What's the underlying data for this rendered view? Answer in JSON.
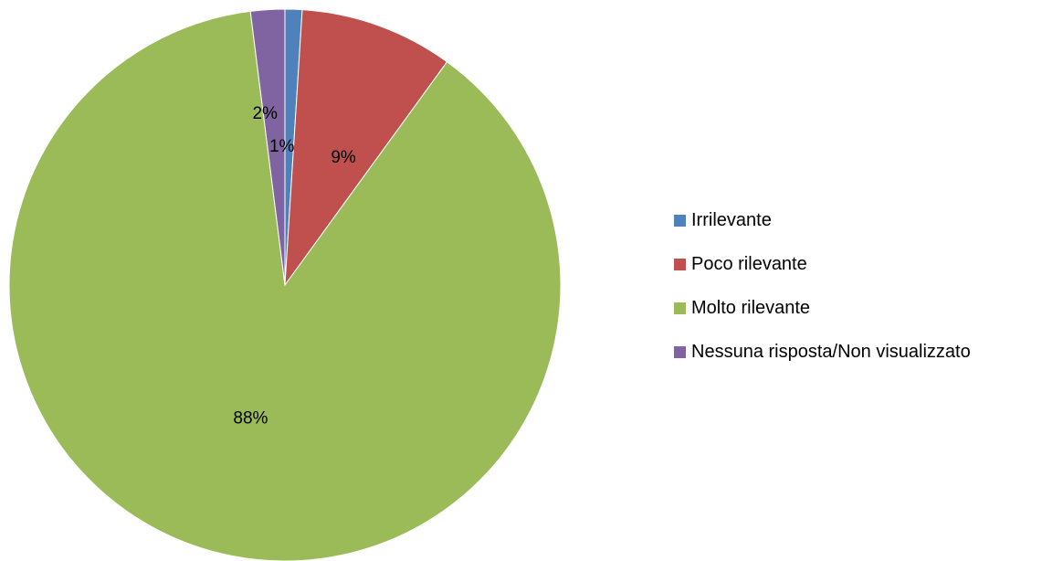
{
  "chart_data": {
    "type": "pie",
    "title": "",
    "start_angle": "12 o'clock, clockwise",
    "legend_position": "right",
    "slices": [
      {
        "label": "Irrilevante",
        "value": 1,
        "display": "1%",
        "color": "#4F81BD"
      },
      {
        "label": "Poco rilevante",
        "value": 9,
        "display": "9%",
        "color": "#C0504D"
      },
      {
        "label": "Molto rilevante",
        "value": 88,
        "display": "88%",
        "color": "#9BBB59"
      },
      {
        "label": "Nessuna risposta/Non visualizzato",
        "value": 2,
        "display": "2%",
        "color": "#8064A2"
      }
    ]
  }
}
